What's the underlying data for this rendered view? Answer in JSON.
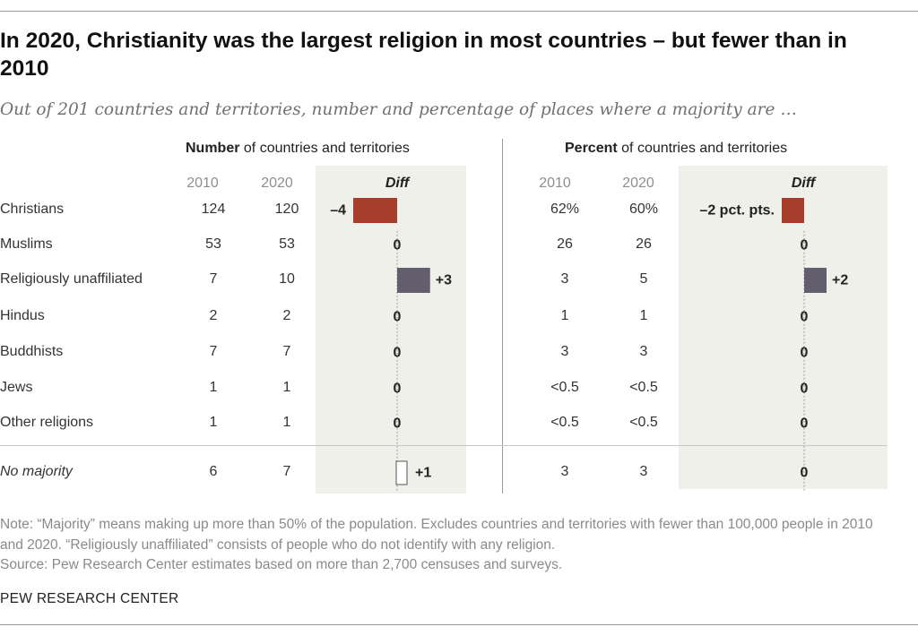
{
  "title": "In 2020, Christianity was the largest religion in most countries – but fewer than in 2010",
  "subtitle": "Out of 201 countries and territories, number and percentage of places where a majority are …",
  "colors": {
    "negative": "#a63d2a",
    "positive": "#625e6e",
    "shade": "#eef0e9"
  },
  "chart_data": [
    {
      "type": "bar",
      "header_bold": "Number",
      "header_rest": " of countries and territories",
      "year_labels": [
        "2010",
        "2020"
      ],
      "diff_label": "Diff",
      "categories": [
        "Christians",
        "Muslims",
        "Religiously unaffiliated",
        "Hindus",
        "Buddhists",
        "Jews",
        "Other religions",
        "No majority"
      ],
      "values_2010": [
        "124",
        "53",
        "7",
        "2",
        "7",
        "1",
        "1",
        "6"
      ],
      "values_2020": [
        "120",
        "53",
        "10",
        "2",
        "7",
        "1",
        "1",
        "7"
      ],
      "diff": [
        -4,
        0,
        3,
        0,
        0,
        0,
        0,
        1
      ],
      "diff_labels": [
        "–4",
        "0",
        "+3",
        "0",
        "0",
        "0",
        "0",
        "+1"
      ]
    },
    {
      "type": "bar",
      "header_bold": "Percent",
      "header_rest": " of countries and territories",
      "year_labels": [
        "2010",
        "2020"
      ],
      "diff_label": "Diff",
      "categories": [
        "Christians",
        "Muslims",
        "Religiously unaffiliated",
        "Hindus",
        "Buddhists",
        "Jews",
        "Other religions",
        "No majority"
      ],
      "values_2010": [
        "62%",
        "26",
        "3",
        "1",
        "3",
        "<0.5",
        "<0.5",
        "3"
      ],
      "values_2020": [
        "60%",
        "26",
        "5",
        "1",
        "3",
        "<0.5",
        "<0.5",
        "3"
      ],
      "diff": [
        -2,
        0,
        2,
        0,
        0,
        0,
        0,
        0
      ],
      "diff_labels": [
        "–2 pct. pts.",
        "0",
        "+2",
        "0",
        "0",
        "0",
        "0",
        "0"
      ]
    }
  ],
  "note": "Note: “Majority” means making up more than 50% of the population. Excludes countries and territories with fewer than 100,000 people in 2010 and 2020. “Religiously unaffiliated” consists of people who do not identify with any religion.",
  "source": "Source: Pew Research Center estimates based on more than 2,700 censuses and surveys.",
  "brand": "PEW RESEARCH CENTER"
}
